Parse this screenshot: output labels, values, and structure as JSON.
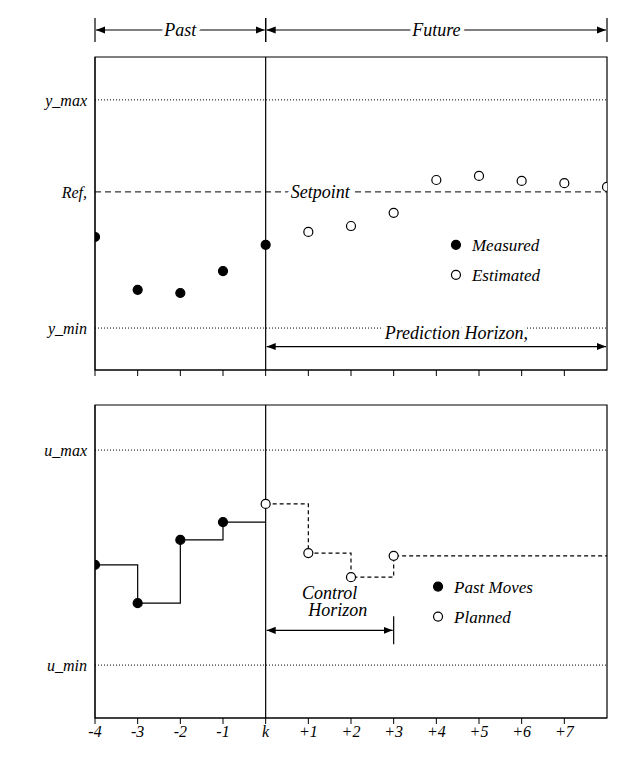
{
  "chart_data": [
    {
      "type": "scatter",
      "header": [
        {
          "label": "Past",
          "from": -4,
          "to": 0
        },
        {
          "label": "Future",
          "from": 0,
          "to": 8
        }
      ],
      "xlim": [
        -4,
        8
      ],
      "xticks": [
        -4,
        -3,
        -2,
        -1,
        {
          "value": 0,
          "label": "k"
        },
        {
          "value": 1,
          "label": "+1"
        },
        {
          "value": 2,
          "label": "+2"
        },
        {
          "value": 3,
          "label": "+3"
        },
        {
          "value": 4,
          "label": "+4"
        },
        {
          "value": 5,
          "label": "+5"
        },
        {
          "value": 6,
          "label": "+6"
        },
        {
          "value": 7,
          "label": "+7"
        }
      ],
      "tick_labels": "y",
      "ylim": [
        0,
        10
      ],
      "yticks": [
        {
          "value": 1.34,
          "label": "y_min"
        },
        {
          "value": 5.69,
          "label": "Ref,"
        },
        {
          "value": 8.63,
          "label": "y_max"
        }
      ],
      "grid": true,
      "current_x": 0,
      "setpoint": {
        "label": "Setpoint",
        "y": 5.69
      },
      "horizon": {
        "label": "Prediction Horizon,",
        "from": 0,
        "to": 8
      },
      "series": [
        {
          "name": "Measured",
          "marker": "circle",
          "color": "#000000",
          "x": [
            -4,
            -3,
            -2,
            -1,
            0
          ],
          "values": [
            4.25,
            2.56,
            2.46,
            3.16,
            4.0
          ]
        },
        {
          "name": "Estimated",
          "marker": "open_circle",
          "color": "#000000",
          "x": [
            1,
            2,
            3,
            4,
            5,
            6,
            7,
            8
          ],
          "values": [
            4.41,
            4.6,
            5.02,
            6.07,
            6.2,
            6.04,
            5.97,
            5.85
          ]
        }
      ]
    },
    {
      "type": "step",
      "xlim": [
        -4,
        8
      ],
      "xticks": [
        -4,
        -3,
        -2,
        -1,
        {
          "value": 0,
          "label": "k"
        },
        {
          "value": 1,
          "label": "+1"
        },
        {
          "value": 2,
          "label": "+2"
        },
        {
          "value": 3,
          "label": "+3"
        },
        {
          "value": 4,
          "label": "+4"
        },
        {
          "value": 5,
          "label": "+5"
        },
        {
          "value": 6,
          "label": "+6"
        },
        {
          "value": 7,
          "label": "+7"
        }
      ],
      "ylim": [
        0,
        10
      ],
      "yticks": [
        {
          "value": 1.69,
          "label": "u_min"
        },
        {
          "value": 8.56,
          "label": "u_max"
        }
      ],
      "grid": true,
      "current_x": 0,
      "horizon": {
        "label": "Control Horizon",
        "from": 0,
        "to": 3
      },
      "series": [
        {
          "name": "Past Moves",
          "marker": "circle",
          "line_style": "solid",
          "color": "#000000",
          "x": [
            -4,
            -3,
            -2,
            -1
          ],
          "values": [
            4.89,
            3.67,
            5.69,
            6.26
          ]
        },
        {
          "name": "Planned",
          "marker": "open_circle",
          "line_style": "dashed",
          "color": "#000000",
          "x": [
            0,
            1,
            2,
            3
          ],
          "values": [
            6.84,
            5.27,
            4.5,
            5.18
          ]
        }
      ]
    }
  ]
}
